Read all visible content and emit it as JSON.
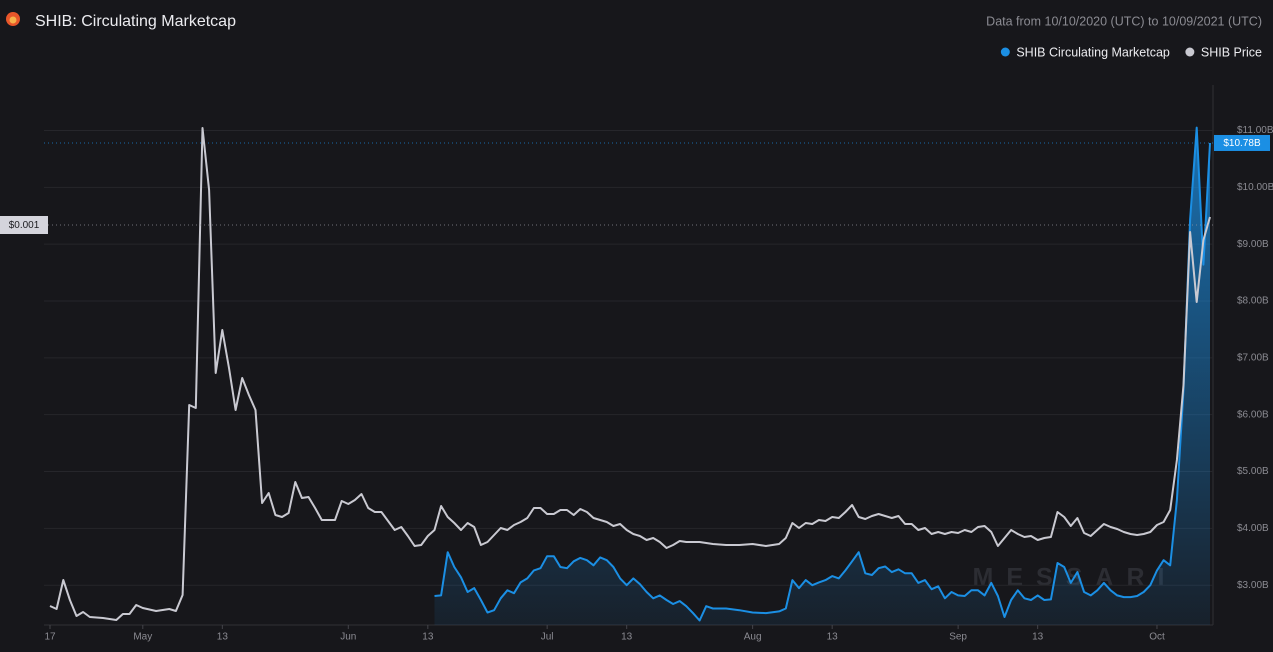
{
  "chart_data": {
    "type": "line",
    "title": "SHIB: Circulating Marketcap",
    "subtitle": "Data from 10/10/2020 (UTC) to 10/09/2021 (UTC)",
    "watermark": "MESSARI",
    "xlim": [
      0,
      175
    ],
    "xticks": [
      {
        "value": 0,
        "label": "17"
      },
      {
        "value": 14,
        "label": "May"
      },
      {
        "value": 26,
        "label": "13"
      },
      {
        "value": 45,
        "label": "Jun"
      },
      {
        "value": 57,
        "label": "13"
      },
      {
        "value": 75,
        "label": "Jul"
      },
      {
        "value": 87,
        "label": "13"
      },
      {
        "value": 106,
        "label": "Aug"
      },
      {
        "value": 118,
        "label": "13"
      },
      {
        "value": 137,
        "label": "Sep"
      },
      {
        "value": 149,
        "label": "13"
      },
      {
        "value": 167,
        "label": "Oct"
      }
    ],
    "ylim": [
      0,
      0.00135
    ],
    "yticks": [
      {
        "value": 0.001,
        "label": "$0.001"
      }
    ],
    "y2lim": [
      2.3,
      11.8
    ],
    "y2ticks": [
      {
        "value": 3,
        "label": "$3.00B"
      },
      {
        "value": 4,
        "label": "$4.00B"
      },
      {
        "value": 5,
        "label": "$5.00B"
      },
      {
        "value": 6,
        "label": "$6.00B"
      },
      {
        "value": 7,
        "label": "$7.00B"
      },
      {
        "value": 8,
        "label": "$8.00B"
      },
      {
        "value": 9,
        "label": "$9.00B"
      },
      {
        "value": 10,
        "label": "$10.00B"
      },
      {
        "value": 11,
        "label": "$11.00B"
      }
    ],
    "grid": true,
    "legend": "top-right",
    "series": [
      {
        "name": "SHIB Circulating Marketcap",
        "color": "#1b8fe4",
        "axis": "y2",
        "area": true,
        "current_value": {
          "value": 10.78,
          "label": "$10.78B"
        },
        "x": [
          58,
          59,
          60,
          61,
          62,
          63,
          64,
          65,
          66,
          67,
          68,
          69,
          70,
          71,
          72,
          73,
          74,
          75,
          76,
          77,
          78,
          79,
          80,
          81,
          82,
          83,
          84,
          85,
          86,
          87,
          88,
          89,
          90,
          91,
          92,
          93,
          94,
          95,
          96,
          97,
          98,
          99,
          100,
          102,
          104,
          106,
          108,
          110,
          111,
          112,
          113,
          114,
          115,
          116,
          117,
          118,
          119,
          120,
          121,
          122,
          123,
          124,
          125,
          126,
          127,
          128,
          129,
          130,
          131,
          132,
          133,
          134,
          135,
          136,
          137,
          138,
          139,
          140,
          141,
          142,
          143,
          144,
          145,
          146,
          147,
          148,
          149,
          150,
          151,
          152,
          153,
          154,
          155,
          156,
          157,
          158,
          159,
          160,
          161,
          162,
          163,
          164,
          165,
          166,
          167,
          168,
          169,
          170,
          171,
          172,
          173,
          174,
          175
        ],
        "values": [
          2.81,
          2.82,
          3.58,
          3.32,
          3.14,
          2.88,
          2.95,
          2.74,
          2.52,
          2.56,
          2.77,
          2.91,
          2.86,
          3.05,
          3.12,
          3.26,
          3.3,
          3.51,
          3.51,
          3.32,
          3.3,
          3.42,
          3.48,
          3.44,
          3.35,
          3.49,
          3.44,
          3.32,
          3.12,
          3.0,
          3.12,
          3.02,
          2.88,
          2.77,
          2.82,
          2.74,
          2.67,
          2.72,
          2.63,
          2.51,
          2.38,
          2.63,
          2.59,
          2.59,
          2.56,
          2.52,
          2.51,
          2.54,
          2.59,
          3.09,
          2.95,
          3.09,
          3.0,
          3.05,
          3.09,
          3.16,
          3.12,
          3.26,
          3.42,
          3.58,
          3.21,
          3.18,
          3.3,
          3.33,
          3.23,
          3.28,
          3.21,
          3.21,
          3.04,
          3.09,
          2.93,
          2.98,
          2.77,
          2.88,
          2.82,
          2.81,
          2.91,
          2.91,
          2.82,
          3.04,
          2.81,
          2.44,
          2.74,
          2.91,
          2.77,
          2.74,
          2.82,
          2.74,
          2.75,
          3.39,
          3.32,
          3.04,
          3.23,
          2.88,
          2.82,
          2.91,
          3.04,
          2.91,
          2.82,
          2.79,
          2.79,
          2.81,
          2.88,
          3.0,
          3.26,
          3.44,
          3.35,
          4.5,
          6.44,
          9.43,
          11.05,
          8.64,
          10.78
        ]
      },
      {
        "name": "SHIB Price",
        "color": "#c9c9d1",
        "axis": "y",
        "x": [
          0,
          1,
          2,
          3,
          4,
          5,
          6,
          8,
          10,
          11,
          12,
          13,
          14,
          16,
          18,
          19,
          20,
          21,
          22,
          23,
          24,
          25,
          26,
          27,
          28,
          29,
          30,
          31,
          32,
          33,
          34,
          35,
          36,
          37,
          38,
          39,
          40,
          41,
          42,
          43,
          44,
          45,
          46,
          47,
          48,
          49,
          50,
          52,
          53,
          54,
          55,
          56,
          57,
          58,
          59,
          60,
          61,
          62,
          63,
          64,
          65,
          66,
          67,
          68,
          69,
          70,
          71,
          72,
          73,
          74,
          75,
          76,
          77,
          78,
          79,
          80,
          81,
          82,
          83,
          84,
          85,
          86,
          87,
          88,
          89,
          90,
          91,
          92,
          93,
          94,
          95,
          96,
          98,
          100,
          102,
          104,
          106,
          108,
          110,
          111,
          112,
          113,
          114,
          115,
          116,
          117,
          118,
          119,
          120,
          121,
          122,
          123,
          124,
          125,
          126,
          127,
          128,
          129,
          130,
          131,
          132,
          133,
          134,
          135,
          136,
          137,
          138,
          139,
          140,
          141,
          142,
          143,
          144,
          145,
          146,
          147,
          148,
          149,
          150,
          151,
          152,
          153,
          154,
          155,
          156,
          157,
          158,
          159,
          160,
          161,
          162,
          163,
          164,
          165,
          166,
          167,
          168,
          169,
          170,
          171,
          172,
          173,
          174,
          175
        ],
        "values": [
          4.75e-05,
          4e-05,
          0.0001125,
          6.25e-05,
          2.25e-05,
          3.25e-05,
          2e-05,
          1.75e-05,
          1.25e-05,
          2.75e-05,
          2.75e-05,
          5e-05,
          4.25e-05,
          3.5e-05,
          4e-05,
          3.5e-05,
          7.5e-05,
          0.00055,
          0.0005425,
          0.0012425,
          0.0010875,
          0.00063,
          0.0007375,
          0.0006425,
          0.0005375,
          0.0006175,
          0.000575,
          0.0005375,
          0.000305,
          0.00033,
          0.000275,
          0.00027,
          0.00028,
          0.0003575,
          0.0003175,
          0.00032,
          0.0002925,
          0.0002625,
          0.0002625,
          0.0002625,
          0.00031,
          0.0003025,
          0.0003125,
          0.0003275,
          0.0002925,
          0.0002825,
          0.0002825,
          0.0002375,
          0.000245,
          0.0002225,
          0.0001975,
          0.0002,
          0.0002225,
          0.0002375,
          0.0002975,
          0.00027,
          0.000255,
          0.0002375,
          0.000255,
          0.000245,
          0.0002,
          0.0002075,
          0.000225,
          0.0002425,
          0.0002375,
          0.00025,
          0.0002575,
          0.0002675,
          0.0002925,
          0.0002925,
          0.0002775,
          0.0002775,
          0.0002875,
          0.0002875,
          0.000275,
          0.00029,
          0.0002825,
          0.0002675,
          0.0002625,
          0.0002575,
          0.0002475,
          0.0002525,
          0.0002375,
          0.0002275,
          0.0002225,
          0.0002125,
          0.0002175,
          0.0002075,
          0.0001925,
          0.0002,
          0.00021,
          0.0002075,
          0.0002075,
          0.0002025,
          0.0002,
          0.0002,
          0.0002025,
          0.0001975,
          0.0002025,
          0.0002175,
          0.000255,
          0.0002425,
          0.000255,
          0.0002525,
          0.0002625,
          0.00026,
          0.00027,
          0.0002675,
          0.0002825,
          0.0003,
          0.00027,
          0.000265,
          0.0002725,
          0.0002775,
          0.0002725,
          0.0002675,
          0.0002725,
          0.0002525,
          0.0002525,
          0.0002375,
          0.0002425,
          0.0002275,
          0.0002325,
          0.0002275,
          0.0002325,
          0.00023,
          0.0002375,
          0.0002325,
          0.000245,
          0.0002475,
          0.0002325,
          0.0001975,
          0.0002175,
          0.0002375,
          0.0002275,
          0.00022,
          0.0002225,
          0.0002125,
          0.0002175,
          0.00022,
          0.0002825,
          0.00027,
          0.0002475,
          0.0002675,
          0.00023,
          0.0002225,
          0.0002375,
          0.0002525,
          0.000245,
          0.00024,
          0.0002325,
          0.0002275,
          0.000225,
          0.0002275,
          0.0002325,
          0.00025,
          0.0002575,
          0.0002875,
          0.0004125,
          0.0006,
          0.0009825,
          0.0008075,
          0.0009625,
          0.00102
        ]
      }
    ]
  }
}
